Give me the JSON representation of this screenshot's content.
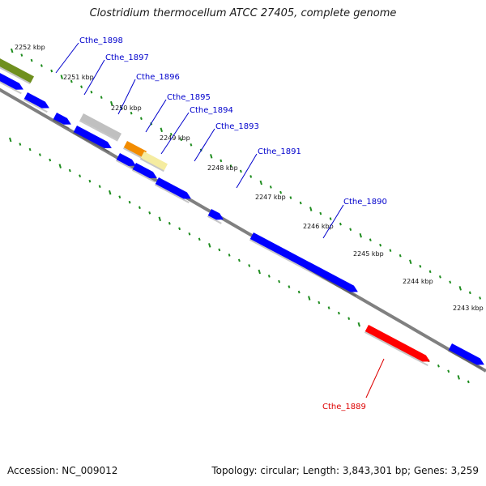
{
  "title": "Clostridium thermocellum ATCC 27405, complete genome",
  "footer": {
    "accession": "Accession: NC_009012",
    "stats": "Topology: circular; Length: 3,843,301 bp; Genes: 3,259"
  },
  "colors": {
    "background": "#ffffff",
    "backbone": "#808080",
    "tick": "#1e8c1e",
    "forward_gene": "#0000ff",
    "highlight_gene": "#ff0000",
    "gene_label": "#0000cc",
    "highlight_label": "#dd0000",
    "orange_feature": "#f28c00",
    "yellow_feature": "#f5eca0",
    "olive_feature": "#6f8f1e",
    "grey_feature": "#c0c0c0"
  },
  "ruler": {
    "unit": "kbp",
    "labels": [
      "2252 kbp",
      "2251 kbp",
      "2250 kbp",
      "2249 kbp",
      "2248 kbp",
      "2247 kbp",
      "2246 kbp",
      "2245 kbp",
      "2244 kbp",
      "2243 kbp"
    ]
  },
  "genes": [
    {
      "label": "Cthe_1898",
      "highlight": false
    },
    {
      "label": "Cthe_1897",
      "highlight": false
    },
    {
      "label": "Cthe_1896",
      "highlight": false
    },
    {
      "label": "Cthe_1895",
      "highlight": false
    },
    {
      "label": "Cthe_1894",
      "highlight": false
    },
    {
      "label": "Cthe_1893",
      "highlight": false
    },
    {
      "label": "Cthe_1891",
      "highlight": false
    },
    {
      "label": "Cthe_1890",
      "highlight": false
    },
    {
      "label": "Cthe_1889",
      "highlight": true
    }
  ]
}
